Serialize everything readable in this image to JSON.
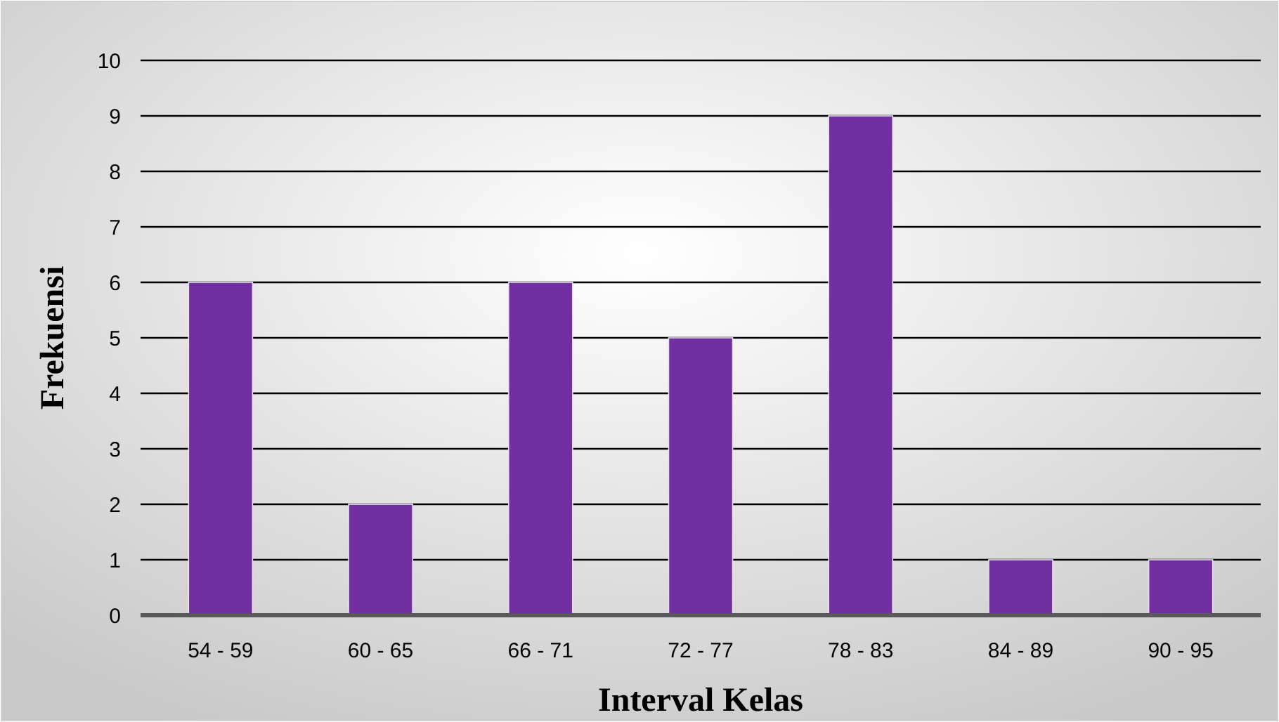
{
  "chart_data": {
    "type": "bar",
    "xlabel": "Interval Kelas",
    "ylabel": "Frekuensi",
    "categories": [
      "54 - 59",
      "60 - 65",
      "66 - 71",
      "72 - 77",
      "78 - 83",
      "84 - 89",
      "90 - 95"
    ],
    "values": [
      6,
      2,
      6,
      5,
      9,
      1,
      1
    ],
    "color": "#7030a0",
    "ylim": [
      0,
      10
    ],
    "yticks": [
      0,
      1,
      2,
      3,
      4,
      5,
      6,
      7,
      8,
      9,
      10
    ],
    "grid": "y"
  }
}
